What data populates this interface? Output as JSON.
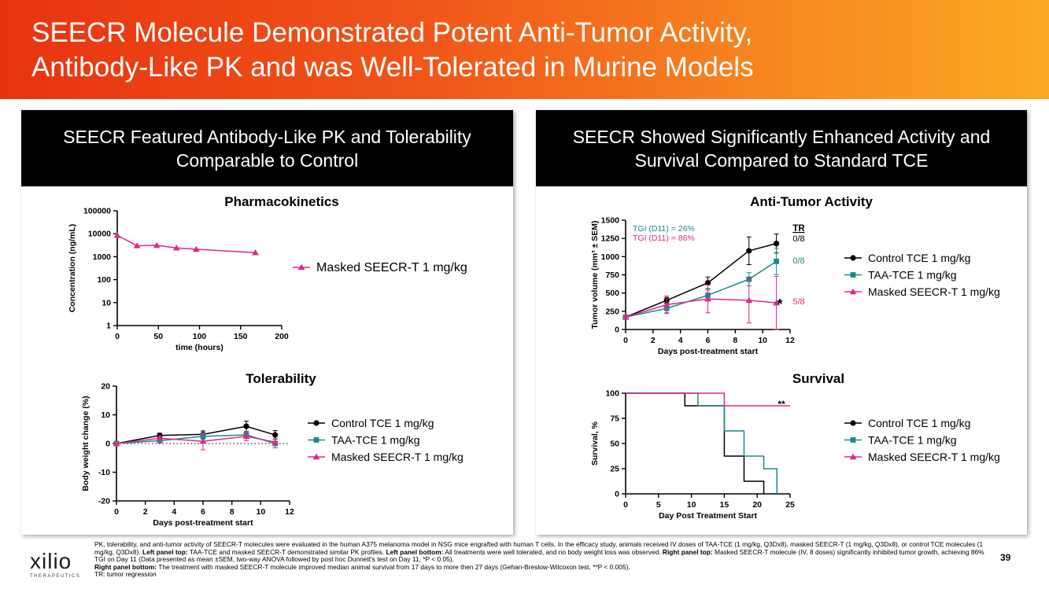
{
  "header": {
    "title_line1": "SEECR Molecule Demonstrated Potent Anti-Tumor Activity,",
    "title_line2": "Antibody-Like PK and was Well-Tolerated in Murine Models"
  },
  "left_panel": {
    "heading_line1": "SEECR Featured Antibody-Like PK and Tolerability",
    "heading_line2": "Comparable to Control"
  },
  "right_panel": {
    "heading_line1": "SEECR Showed Significantly Enhanced Activity and",
    "heading_line2": "Survival Compared to Standard TCE"
  },
  "colors": {
    "control": "#000000",
    "taa": "#1a8a8c",
    "masked": "#e0288a"
  },
  "chart_data": [
    {
      "id": "pk",
      "type": "line",
      "title": "Pharmacokinetics",
      "xlabel": "time (hours)",
      "ylabel": "Concentration (ng/mL)",
      "yscale": "log",
      "xlim": [
        0,
        200
      ],
      "ylim": [
        1,
        100000
      ],
      "xticks": [
        "0",
        "50",
        "100",
        "150",
        "200"
      ],
      "yticks": [
        "1",
        "10",
        "100",
        "1000",
        "10000",
        "100000"
      ],
      "yticks_values": [
        1,
        10,
        100,
        1000,
        10000,
        100000
      ],
      "xticks_values": [
        0,
        50,
        100,
        150,
        200
      ],
      "series": [
        {
          "name": "Masked SEECR-T 1 mg/kg",
          "marker": "triangle",
          "color": "masked",
          "x": [
            0,
            24,
            48,
            72,
            96,
            168
          ],
          "y": [
            8500,
            3000,
            3100,
            2400,
            2100,
            1500
          ]
        }
      ]
    },
    {
      "id": "tolerability",
      "type": "line",
      "title": "Tolerability",
      "xlabel": "Days post-treatment start",
      "ylabel": "Body weight change (%)",
      "xlim": [
        0,
        12
      ],
      "ylim": [
        -20,
        20
      ],
      "xticks": [
        "0",
        "2",
        "4",
        "6",
        "8",
        "10",
        "12"
      ],
      "yticks": [
        "-20",
        "-10",
        "0",
        "10",
        "20"
      ],
      "xticks_values": [
        0,
        2,
        4,
        6,
        8,
        10,
        12
      ],
      "yticks_values": [
        -20,
        -10,
        0,
        10,
        20
      ],
      "series": [
        {
          "name": "Control TCE 1 mg/kg",
          "marker": "circle",
          "color": "control",
          "x": [
            0,
            3,
            6,
            9,
            11
          ],
          "y": [
            0,
            2.8,
            3.2,
            6.0,
            3.0
          ],
          "err": [
            0,
            0.8,
            1.2,
            1.8,
            1.5
          ]
        },
        {
          "name": "TAA-TCE 1 mg/kg",
          "marker": "square",
          "color": "taa",
          "x": [
            0,
            3,
            6,
            9,
            11
          ],
          "y": [
            0,
            1.0,
            2.5,
            3.0,
            0.0
          ],
          "err": [
            0,
            0.6,
            1.0,
            1.2,
            1.5
          ]
        },
        {
          "name": "Masked SEECR-T 1 mg/kg",
          "marker": "triangle",
          "color": "masked",
          "x": [
            0,
            3,
            6,
            9,
            11
          ],
          "y": [
            0,
            1.8,
            0.8,
            2.5,
            0.5
          ],
          "err": [
            0,
            0.8,
            3.0,
            1.5,
            1.2
          ]
        }
      ]
    },
    {
      "id": "antitumor",
      "type": "line",
      "title": "Anti-Tumor Activity",
      "xlabel": "Days post-treatment start",
      "ylabel": "Tumor volume (mm³ ± SEM)",
      "xlim": [
        0,
        12
      ],
      "ylim": [
        0,
        1500
      ],
      "xticks": [
        "0",
        "2",
        "4",
        "6",
        "8",
        "10",
        "12"
      ],
      "yticks": [
        "0",
        "250",
        "500",
        "750",
        "1000",
        "1250",
        "1500"
      ],
      "xticks_values": [
        0,
        2,
        4,
        6,
        8,
        10,
        12
      ],
      "yticks_values": [
        0,
        250,
        500,
        750,
        1000,
        1250,
        1500
      ],
      "annotations": {
        "tgi_taa": "TGI (D11) = 26%",
        "tgi_masked": "TGI (D11) = 86%",
        "tr_header": "TR",
        "tr_control": "0/8",
        "tr_taa": "0/8",
        "tr_masked": "5/8",
        "sig": "*"
      },
      "series": [
        {
          "name": "Control TCE 1 mg/kg",
          "marker": "circle",
          "color": "control",
          "x": [
            0,
            3,
            6,
            9,
            11
          ],
          "y": [
            170,
            400,
            640,
            1080,
            1180
          ],
          "err": [
            15,
            40,
            80,
            190,
            130
          ]
        },
        {
          "name": "TAA-TCE 1 mg/kg",
          "marker": "square",
          "color": "taa",
          "x": [
            0,
            3,
            6,
            9,
            11
          ],
          "y": [
            170,
            290,
            470,
            690,
            935
          ],
          "err": [
            15,
            60,
            70,
            90,
            180
          ]
        },
        {
          "name": "Masked SEECR-T 1 mg/kg",
          "marker": "triangle",
          "color": "masked",
          "x": [
            0,
            3,
            6,
            9,
            11
          ],
          "y": [
            170,
            340,
            420,
            400,
            365
          ],
          "err": [
            15,
            120,
            190,
            310,
            365
          ]
        }
      ]
    },
    {
      "id": "survival",
      "type": "line",
      "step": true,
      "title": "Survival",
      "xlabel": "Day Post Treatment Start",
      "ylabel": "Survival, %",
      "xlim": [
        0,
        25
      ],
      "ylim": [
        0,
        100
      ],
      "xticks": [
        "0",
        "5",
        "10",
        "15",
        "20",
        "25"
      ],
      "yticks": [
        "0",
        "25",
        "50",
        "75",
        "100"
      ],
      "xticks_values": [
        0,
        5,
        10,
        15,
        20,
        25
      ],
      "yticks_values": [
        0,
        25,
        50,
        75,
        100
      ],
      "annotations": {
        "sig": "**"
      },
      "series": [
        {
          "name": "Control TCE 1 mg/kg",
          "marker": "circle",
          "color": "control",
          "x": [
            0,
            9,
            15,
            18,
            21
          ],
          "y": [
            100,
            87.5,
            37.5,
            12.5,
            0
          ]
        },
        {
          "name": "TAA-TCE 1 mg/kg",
          "marker": "square",
          "color": "taa",
          "x": [
            0,
            11,
            15,
            18,
            21,
            23
          ],
          "y": [
            100,
            87.5,
            62.5,
            37.5,
            25,
            0
          ]
        },
        {
          "name": "Masked SEECR-T 1 mg/kg",
          "marker": "triangle",
          "color": "masked",
          "x": [
            0,
            15,
            25
          ],
          "y": [
            100,
            87.5,
            87.5
          ]
        }
      ]
    }
  ],
  "footnote": {
    "p1_text": "PK, tolerability, and anti-tumor activity of SEECR-T molecules were evaluated in the human A375 melanoma model in NSG mice engrafted with human T cells. In the efficacy study, animals received IV doses of TAA-TCE (1 mg/kg, Q3Dx8), masked SEECR-T (1 mg/kg, Q3Dx8), or control TCE molecules (1 mg/kg, Q3Dx8). ",
    "p1_b1": "Left panel top:",
    "p1_t2": " TAA-TCE and masked SEECR-T demonstrated similar PK profiles. ",
    "p1_b2": "Left panel bottom:",
    "p1_t3": " All treatments were well tolerated, and no body weight loss was observed. ",
    "p1_b3": "Right panel top:",
    "p1_t4": " Masked SEECR-T molecule (IV, 8 doses) significantly inhibited tumor growth, achieving 86% TGI on Day 11 (Data presented as mean ±SEM, two-way ANOVA followed by post hoc Dunnett's test on Day 11, *P < 0.05).",
    "p2_b": "Right panel bottom:",
    "p2_t": " The treatment with masked SEECR-T molecule improved median animal survival from 17 days to more then 27 days (Gehan-Breslow-Wilcoxon test, **P < 0.005).",
    "p3": "TR: tumor regression"
  },
  "logo": {
    "name": "xilio",
    "sub": "THERAPEUTICS"
  },
  "page_number": "39"
}
